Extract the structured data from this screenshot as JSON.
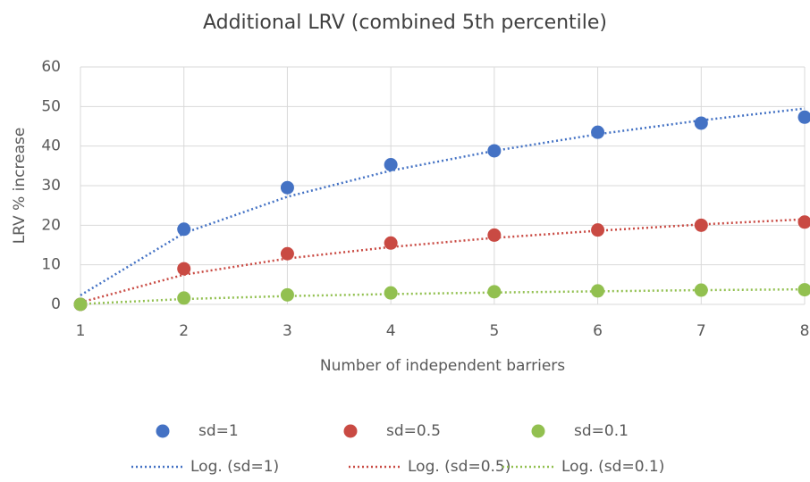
{
  "chart_data": {
    "type": "scatter",
    "title": "Additional LRV (combined 5th percentile)",
    "x_label": "Number of independent barriers",
    "y_label": "LRV % increase",
    "x": [
      1,
      2,
      3,
      4,
      5,
      6,
      7,
      8
    ],
    "xlim": [
      1,
      8
    ],
    "xticks": [
      1,
      2,
      3,
      4,
      5,
      6,
      7,
      8
    ],
    "ylim": [
      0,
      60
    ],
    "yticks": [
      0,
      10,
      20,
      30,
      40,
      50,
      60
    ],
    "grid": true,
    "series": [
      {
        "name": "sd=1",
        "color": "#4472c4",
        "style": "marker",
        "values": [
          0,
          19,
          29.5,
          35.3,
          38.8,
          43.5,
          45.8,
          47.3
        ]
      },
      {
        "name": "sd=0.5",
        "color": "#c94a43",
        "style": "marker",
        "values": [
          0,
          9,
          12.8,
          15.5,
          17.5,
          18.8,
          20,
          20.8
        ]
      },
      {
        "name": "sd=0.1",
        "color": "#92c050",
        "style": "marker",
        "values": [
          0,
          1.6,
          2.4,
          2.9,
          3.2,
          3.4,
          3.6,
          3.7
        ]
      },
      {
        "name": "Log. (sd=1)",
        "color": "#4472c4",
        "style": "dotted",
        "values": [
          2.3,
          18,
          27.2,
          33.8,
          38.8,
          43,
          46.5,
          49.5
        ]
      },
      {
        "name": "Log. (sd=0.5)",
        "color": "#c94a43",
        "style": "dotted",
        "values": [
          0.5,
          7.5,
          11.6,
          14.5,
          16.8,
          18.6,
          20.2,
          21.5
        ]
      },
      {
        "name": "Log. (sd=0.1)",
        "color": "#92c050",
        "style": "dotted",
        "values": [
          0.1,
          1.35,
          2.1,
          2.6,
          3.0,
          3.3,
          3.6,
          3.8
        ]
      }
    ]
  }
}
